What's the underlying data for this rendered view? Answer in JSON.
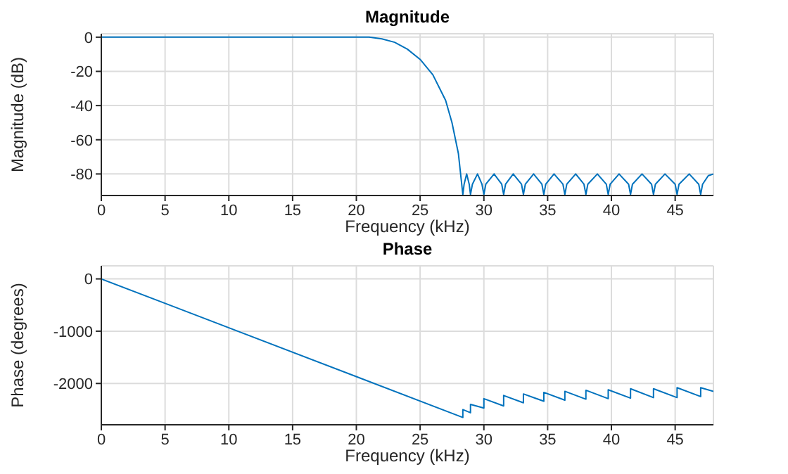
{
  "chart_data": [
    {
      "type": "line",
      "title": "Magnitude",
      "xlabel": "Frequency (kHz)",
      "ylabel": "Magnitude (dB)",
      "grid": true,
      "marker": "none",
      "line_style": "solid",
      "xlim": [
        0,
        48
      ],
      "xticks": [
        0,
        5,
        10,
        15,
        20,
        25,
        30,
        35,
        40,
        45
      ],
      "ylim": [
        -92.6,
        2
      ],
      "yticks": [
        -80,
        -60,
        -40,
        -20,
        0
      ],
      "series": [
        {
          "color": "#0072bd",
          "x": [
            0,
            20,
            21,
            22,
            23,
            24,
            25,
            26,
            27,
            27.5,
            28,
            28.35,
            28.45,
            28.65,
            28.85,
            28.95,
            29.1,
            29.5,
            29.85,
            30.0,
            30.15,
            30.8,
            31.4,
            31.55,
            31.7,
            32.3,
            32.95,
            33.1,
            33.25,
            33.9,
            34.55,
            34.7,
            34.85,
            35.5,
            36.2,
            36.35,
            36.5,
            37.2,
            37.85,
            38.0,
            38.15,
            38.9,
            39.6,
            39.75,
            39.9,
            40.6,
            41.35,
            41.5,
            41.65,
            42.4,
            43.15,
            43.3,
            43.45,
            44.2,
            45.0,
            45.15,
            45.3,
            46.1,
            46.85,
            47.0,
            47.15,
            47.6,
            48
          ],
          "values": [
            0,
            0,
            0,
            -1,
            -3,
            -7,
            -13,
            -22,
            -37,
            -50,
            -68,
            -92,
            -86,
            -80,
            -86,
            -92,
            -86,
            -80,
            -86,
            -92,
            -86,
            -80,
            -86,
            -92,
            -86,
            -80,
            -86,
            -92,
            -86,
            -80,
            -86,
            -92,
            -86,
            -80,
            -86,
            -92,
            -86,
            -80,
            -86,
            -92,
            -86,
            -80,
            -86,
            -92,
            -86,
            -80,
            -86,
            -92,
            -86,
            -80,
            -86,
            -92,
            -86,
            -80,
            -86,
            -92,
            -86,
            -80,
            -86,
            -92,
            -86,
            -81,
            -80
          ]
        }
      ]
    },
    {
      "type": "line",
      "title": "Phase",
      "xlabel": "Frequency (kHz)",
      "ylabel": "Phase (degrees)",
      "grid": true,
      "marker": "none",
      "line_style": "solid",
      "xlim": [
        0,
        48
      ],
      "xticks": [
        0,
        5,
        10,
        15,
        20,
        25,
        30,
        35,
        40,
        45
      ],
      "ylim": [
        -2790,
        250
      ],
      "yticks": [
        -2000,
        -1000,
        0
      ],
      "series": [
        {
          "color": "#0072bd",
          "x": [
            0,
            28.35,
            28.35,
            28.95,
            28.95,
            30.0,
            30.0,
            31.55,
            31.55,
            33.1,
            33.1,
            34.7,
            34.7,
            36.35,
            36.35,
            38.0,
            38.0,
            39.75,
            39.75,
            41.5,
            41.5,
            43.3,
            43.3,
            45.15,
            45.15,
            47.0,
            47.0,
            48
          ],
          "values": [
            0,
            -2650,
            -2500,
            -2560,
            -2400,
            -2470,
            -2290,
            -2430,
            -2230,
            -2370,
            -2200,
            -2340,
            -2170,
            -2320,
            -2150,
            -2300,
            -2130,
            -2290,
            -2120,
            -2280,
            -2100,
            -2270,
            -2100,
            -2270,
            -2080,
            -2250,
            -2080,
            -2150
          ]
        }
      ]
    }
  ]
}
